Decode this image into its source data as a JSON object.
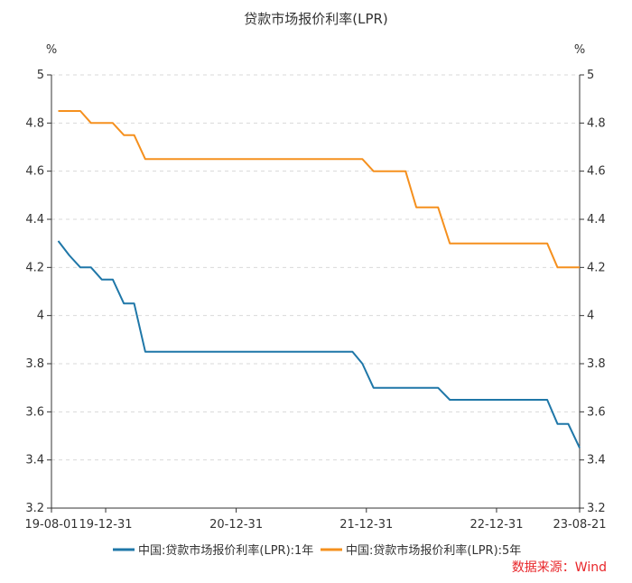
{
  "chart_data": {
    "type": "line",
    "title": "贷款市场报价利率(LPR)",
    "y_unit_left": "%",
    "y_unit_right": "%",
    "ylim": [
      3.2,
      5
    ],
    "yticks": [
      "3.2",
      "3.4",
      "3.6",
      "3.8",
      "4",
      "4.2",
      "4.4",
      "4.6",
      "4.8",
      "5"
    ],
    "xticks": [
      "19-08-01",
      "19-12-31",
      "20-12-31",
      "21-12-31",
      "22-12-31",
      "23-08-21"
    ],
    "x_range": [
      "2019-08-01",
      "2023-08-21"
    ],
    "grid": true,
    "legend_position": "bottom",
    "source": "数据来源：Wind",
    "series": [
      {
        "name": "中国:贷款市场报价利率(LPR):1年",
        "color": "#1f77a8",
        "x": [
          "2019-08-20",
          "2019-09-20",
          "2019-10-21",
          "2019-11-20",
          "2019-12-20",
          "2020-01-20",
          "2020-02-20",
          "2020-03-20",
          "2020-04-20",
          "2021-11-22",
          "2021-12-20",
          "2022-01-20",
          "2022-07-20",
          "2022-08-22",
          "2023-05-22",
          "2023-06-20",
          "2023-07-20",
          "2023-08-21"
        ],
        "values": [
          4.31,
          4.25,
          4.2,
          4.2,
          4.15,
          4.15,
          4.05,
          4.05,
          3.85,
          3.85,
          3.8,
          3.7,
          3.7,
          3.65,
          3.65,
          3.55,
          3.55,
          3.45
        ]
      },
      {
        "name": "中国:贷款市场报价利率(LPR):5年",
        "color": "#f5901e",
        "x": [
          "2019-08-20",
          "2019-09-20",
          "2019-10-21",
          "2019-11-20",
          "2019-12-20",
          "2020-01-20",
          "2020-02-20",
          "2020-03-20",
          "2020-04-20",
          "2021-12-20",
          "2022-01-20",
          "2022-04-20",
          "2022-05-20",
          "2022-07-20",
          "2022-08-22",
          "2023-05-22",
          "2023-06-20",
          "2023-08-21"
        ],
        "values": [
          4.85,
          4.85,
          4.85,
          4.8,
          4.8,
          4.8,
          4.75,
          4.75,
          4.65,
          4.65,
          4.6,
          4.6,
          4.45,
          4.45,
          4.3,
          4.3,
          4.2,
          4.2
        ]
      }
    ]
  }
}
